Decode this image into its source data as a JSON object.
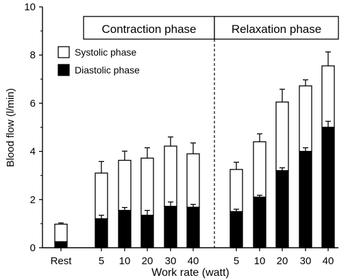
{
  "chart_data": {
    "type": "bar",
    "stacked": true,
    "xlabel": "Work rate (watt)",
    "ylabel": "Blood flow (l/min)",
    "ylim": [
      0,
      10
    ],
    "yticks": [
      0,
      2,
      4,
      6,
      8,
      10
    ],
    "categories": [
      "Rest",
      "5",
      "10",
      "20",
      "30",
      "40",
      "5",
      "10",
      "20",
      "30",
      "40"
    ],
    "groups": [
      {
        "label": "Contraction phase",
        "categories": [
          1,
          2,
          3,
          4,
          5
        ]
      },
      {
        "label": "Relaxation phase",
        "categories": [
          6,
          7,
          8,
          9,
          10
        ]
      }
    ],
    "series": [
      {
        "name": "Diastolic phase",
        "fill": "#000000",
        "values": [
          0.25,
          1.2,
          1.55,
          1.35,
          1.72,
          1.68,
          1.5,
          2.1,
          3.2,
          4.0,
          5.0
        ],
        "error": [
          0,
          0.15,
          0.12,
          0.2,
          0.18,
          0.12,
          0.1,
          0.08,
          0.12,
          0.15,
          0.25
        ]
      },
      {
        "name": "Systolic phase",
        "fill": "#ffffff",
        "values": [
          0.73,
          1.9,
          2.08,
          2.37,
          2.5,
          2.22,
          1.75,
          2.3,
          2.85,
          2.72,
          2.55
        ],
        "error": [
          0.05,
          0.48,
          0.38,
          0.43,
          0.38,
          0.45,
          0.3,
          0.33,
          0.53,
          0.25,
          0.58
        ]
      }
    ],
    "legend_position": "top-left",
    "divider_after_category": 5,
    "grid": false
  }
}
